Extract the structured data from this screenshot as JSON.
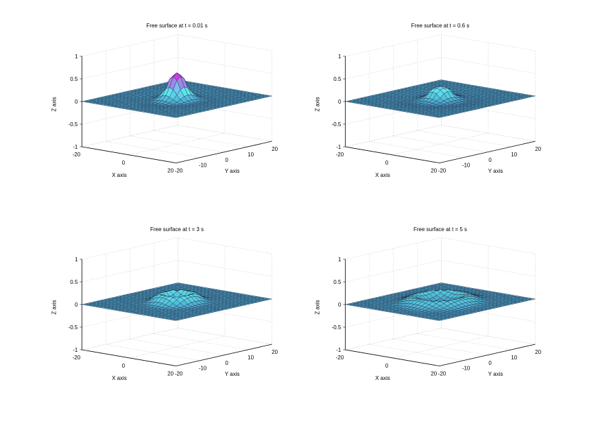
{
  "chart_data": [
    {
      "type": "surface",
      "title": "Free surface at t = 0.01 s",
      "time": 0.01,
      "xlabel": "X axis",
      "ylabel": "Y axis",
      "zlabel": "Z axis",
      "xlim": [
        -20,
        20
      ],
      "ylim": [
        -20,
        20
      ],
      "zlim": [
        -1,
        1
      ],
      "xticks": [
        "-20",
        "0",
        "20"
      ],
      "yticks": [
        "-20",
        "-10",
        "0",
        "10",
        "20"
      ],
      "zticks": [
        "-1",
        "-0.5",
        "0",
        "0.5",
        "1"
      ],
      "grid": true,
      "feature": {
        "kind": "peak",
        "center_x": 0,
        "center_y": 0,
        "amplitude": 0.6,
        "width": 3
      }
    },
    {
      "type": "surface",
      "title": "Free surface at t = 0.6 s",
      "time": 0.6,
      "xlabel": "X axis",
      "ylabel": "Y axis",
      "zlabel": "Z axis",
      "xlim": [
        -20,
        20
      ],
      "ylim": [
        -20,
        20
      ],
      "zlim": [
        -1,
        1
      ],
      "xticks": [
        "-20",
        "0",
        "20"
      ],
      "yticks": [
        "-20",
        "-10",
        "0",
        "10",
        "20"
      ],
      "zticks": [
        "-1",
        "-0.5",
        "0",
        "0.5",
        "1"
      ],
      "grid": true,
      "feature": {
        "kind": "peak",
        "center_x": 0,
        "center_y": 0,
        "amplitude": 0.3,
        "width": 3.5
      }
    },
    {
      "type": "surface",
      "title": "Free surface at t = 3 s",
      "time": 3,
      "xlabel": "X axis",
      "ylabel": "Y axis",
      "zlabel": "Z axis",
      "xlim": [
        -20,
        20
      ],
      "ylim": [
        -20,
        20
      ],
      "zlim": [
        -1,
        1
      ],
      "xticks": [
        "-20",
        "0",
        "20"
      ],
      "yticks": [
        "-20",
        "-10",
        "0",
        "10",
        "20"
      ],
      "zticks": [
        "-1",
        "-0.5",
        "0",
        "0.5",
        "1"
      ],
      "grid": true,
      "feature": {
        "kind": "ring",
        "radius": 5,
        "amplitude": 0.2,
        "width": 2
      }
    },
    {
      "type": "surface",
      "title": "Free surface at t = 5 s",
      "time": 5,
      "xlabel": "X axis",
      "ylabel": "Y axis",
      "zlabel": "Z axis",
      "xlim": [
        -20,
        20
      ],
      "ylim": [
        -20,
        20
      ],
      "zlim": [
        -1,
        1
      ],
      "xticks": [
        "-20",
        "0",
        "20"
      ],
      "yticks": [
        "-20",
        "-10",
        "0",
        "10",
        "20"
      ],
      "zticks": [
        "-1",
        "-0.5",
        "0",
        "0.5",
        "1"
      ],
      "grid": true,
      "feature": {
        "kind": "ring",
        "radius": 8,
        "amplitude": 0.15,
        "width": 2.5
      }
    }
  ],
  "colors": {
    "surface_low": "#3d6fb0",
    "surface_mid": "#5ee8f0",
    "surface_high": "#e020e0",
    "mesh": "#1b1b2e",
    "grid": "#c8c8c8",
    "axis": "#000000"
  }
}
